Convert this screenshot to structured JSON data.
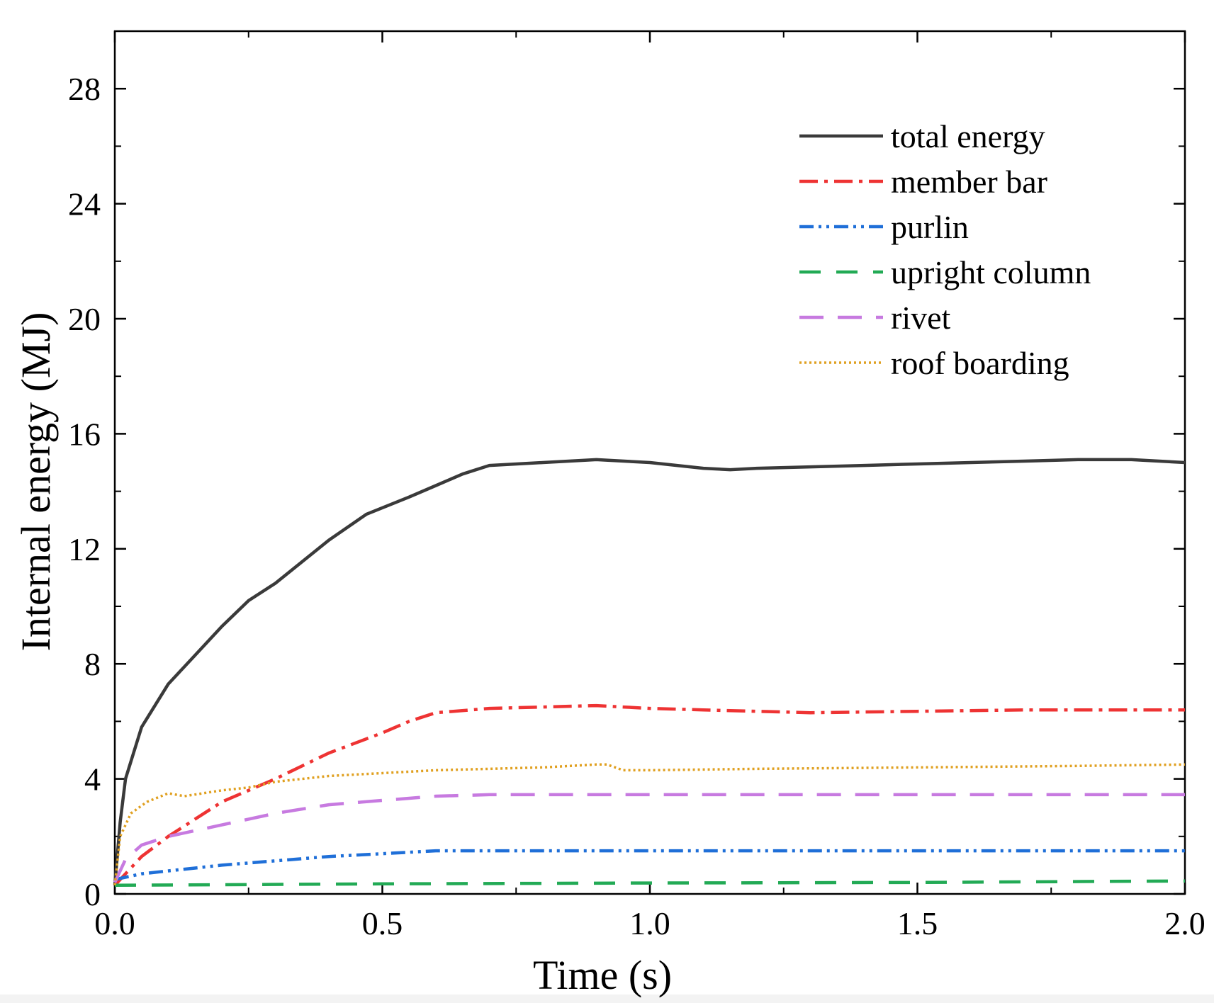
{
  "chart_data": {
    "type": "line",
    "title": "",
    "xlabel": "Time (s)",
    "ylabel": "Internal energy (MJ)",
    "xlim": [
      0.0,
      2.0
    ],
    "ylim": [
      0,
      30
    ],
    "x_ticks": [
      0.0,
      0.5,
      1.0,
      1.5,
      2.0
    ],
    "x_tick_labels": [
      "0.0",
      "0.5",
      "1.0",
      "1.5",
      "2.0"
    ],
    "y_ticks": [
      0,
      4,
      8,
      12,
      16,
      20,
      24,
      28
    ],
    "y_tick_labels": [
      "0",
      "4",
      "8",
      "12",
      "16",
      "20",
      "24",
      "28"
    ],
    "grid": false,
    "legend_position": "top-right",
    "series": [
      {
        "name": "total energy",
        "color": "#3a3a3a",
        "line_style": "solid",
        "x": [
          0.0,
          0.01,
          0.02,
          0.05,
          0.1,
          0.15,
          0.2,
          0.25,
          0.3,
          0.4,
          0.47,
          0.55,
          0.6,
          0.65,
          0.7,
          0.8,
          0.9,
          1.0,
          1.1,
          1.15,
          1.2,
          1.3,
          1.4,
          1.5,
          1.6,
          1.7,
          1.8,
          1.9,
          2.0
        ],
        "y": [
          0.3,
          2.5,
          4.0,
          5.8,
          7.3,
          8.3,
          9.3,
          10.2,
          10.8,
          12.3,
          13.2,
          13.8,
          14.2,
          14.6,
          14.9,
          15.0,
          15.1,
          15.0,
          14.8,
          14.75,
          14.8,
          14.85,
          14.9,
          14.95,
          15.0,
          15.05,
          15.1,
          15.1,
          15.0
        ]
      },
      {
        "name": "member bar",
        "color": "#ee3333",
        "line_style": "dashdot",
        "x": [
          0.0,
          0.05,
          0.1,
          0.15,
          0.2,
          0.3,
          0.4,
          0.5,
          0.55,
          0.6,
          0.7,
          0.8,
          0.9,
          1.0,
          1.1,
          1.2,
          1.3,
          1.5,
          1.7,
          2.0
        ],
        "y": [
          0.3,
          1.3,
          2.0,
          2.6,
          3.2,
          4.0,
          4.9,
          5.6,
          6.0,
          6.3,
          6.45,
          6.5,
          6.55,
          6.45,
          6.4,
          6.35,
          6.3,
          6.35,
          6.4,
          6.4
        ]
      },
      {
        "name": "purlin",
        "color": "#1f6fd8",
        "line_style": "dashdotdot",
        "x": [
          0.0,
          0.05,
          0.1,
          0.2,
          0.3,
          0.4,
          0.5,
          0.6,
          0.8,
          1.0,
          1.5,
          2.0
        ],
        "y": [
          0.5,
          0.7,
          0.8,
          1.0,
          1.15,
          1.3,
          1.4,
          1.5,
          1.5,
          1.5,
          1.5,
          1.5
        ]
      },
      {
        "name": "upright column",
        "color": "#22aa55",
        "line_style": "dashed",
        "x": [
          0.0,
          0.5,
          1.0,
          1.5,
          2.0
        ],
        "y": [
          0.3,
          0.35,
          0.38,
          0.4,
          0.45
        ]
      },
      {
        "name": "rivet",
        "color": "#c77ae0",
        "line_style": "longdash",
        "x": [
          0.0,
          0.02,
          0.05,
          0.1,
          0.2,
          0.3,
          0.4,
          0.5,
          0.6,
          0.7,
          1.0,
          1.5,
          2.0
        ],
        "y": [
          0.4,
          1.2,
          1.7,
          2.0,
          2.4,
          2.8,
          3.1,
          3.25,
          3.4,
          3.45,
          3.45,
          3.45,
          3.45
        ]
      },
      {
        "name": "roof boarding",
        "color": "#e0a020",
        "line_style": "dotted",
        "x": [
          0.0,
          0.01,
          0.03,
          0.06,
          0.1,
          0.13,
          0.2,
          0.25,
          0.3,
          0.4,
          0.5,
          0.6,
          0.7,
          0.8,
          0.9,
          0.92,
          0.95,
          1.0,
          1.2,
          1.5,
          1.8,
          2.0
        ],
        "y": [
          0.3,
          2.0,
          2.8,
          3.2,
          3.5,
          3.4,
          3.6,
          3.7,
          3.9,
          4.1,
          4.2,
          4.3,
          4.35,
          4.4,
          4.5,
          4.5,
          4.3,
          4.3,
          4.35,
          4.4,
          4.45,
          4.5
        ]
      }
    ]
  }
}
